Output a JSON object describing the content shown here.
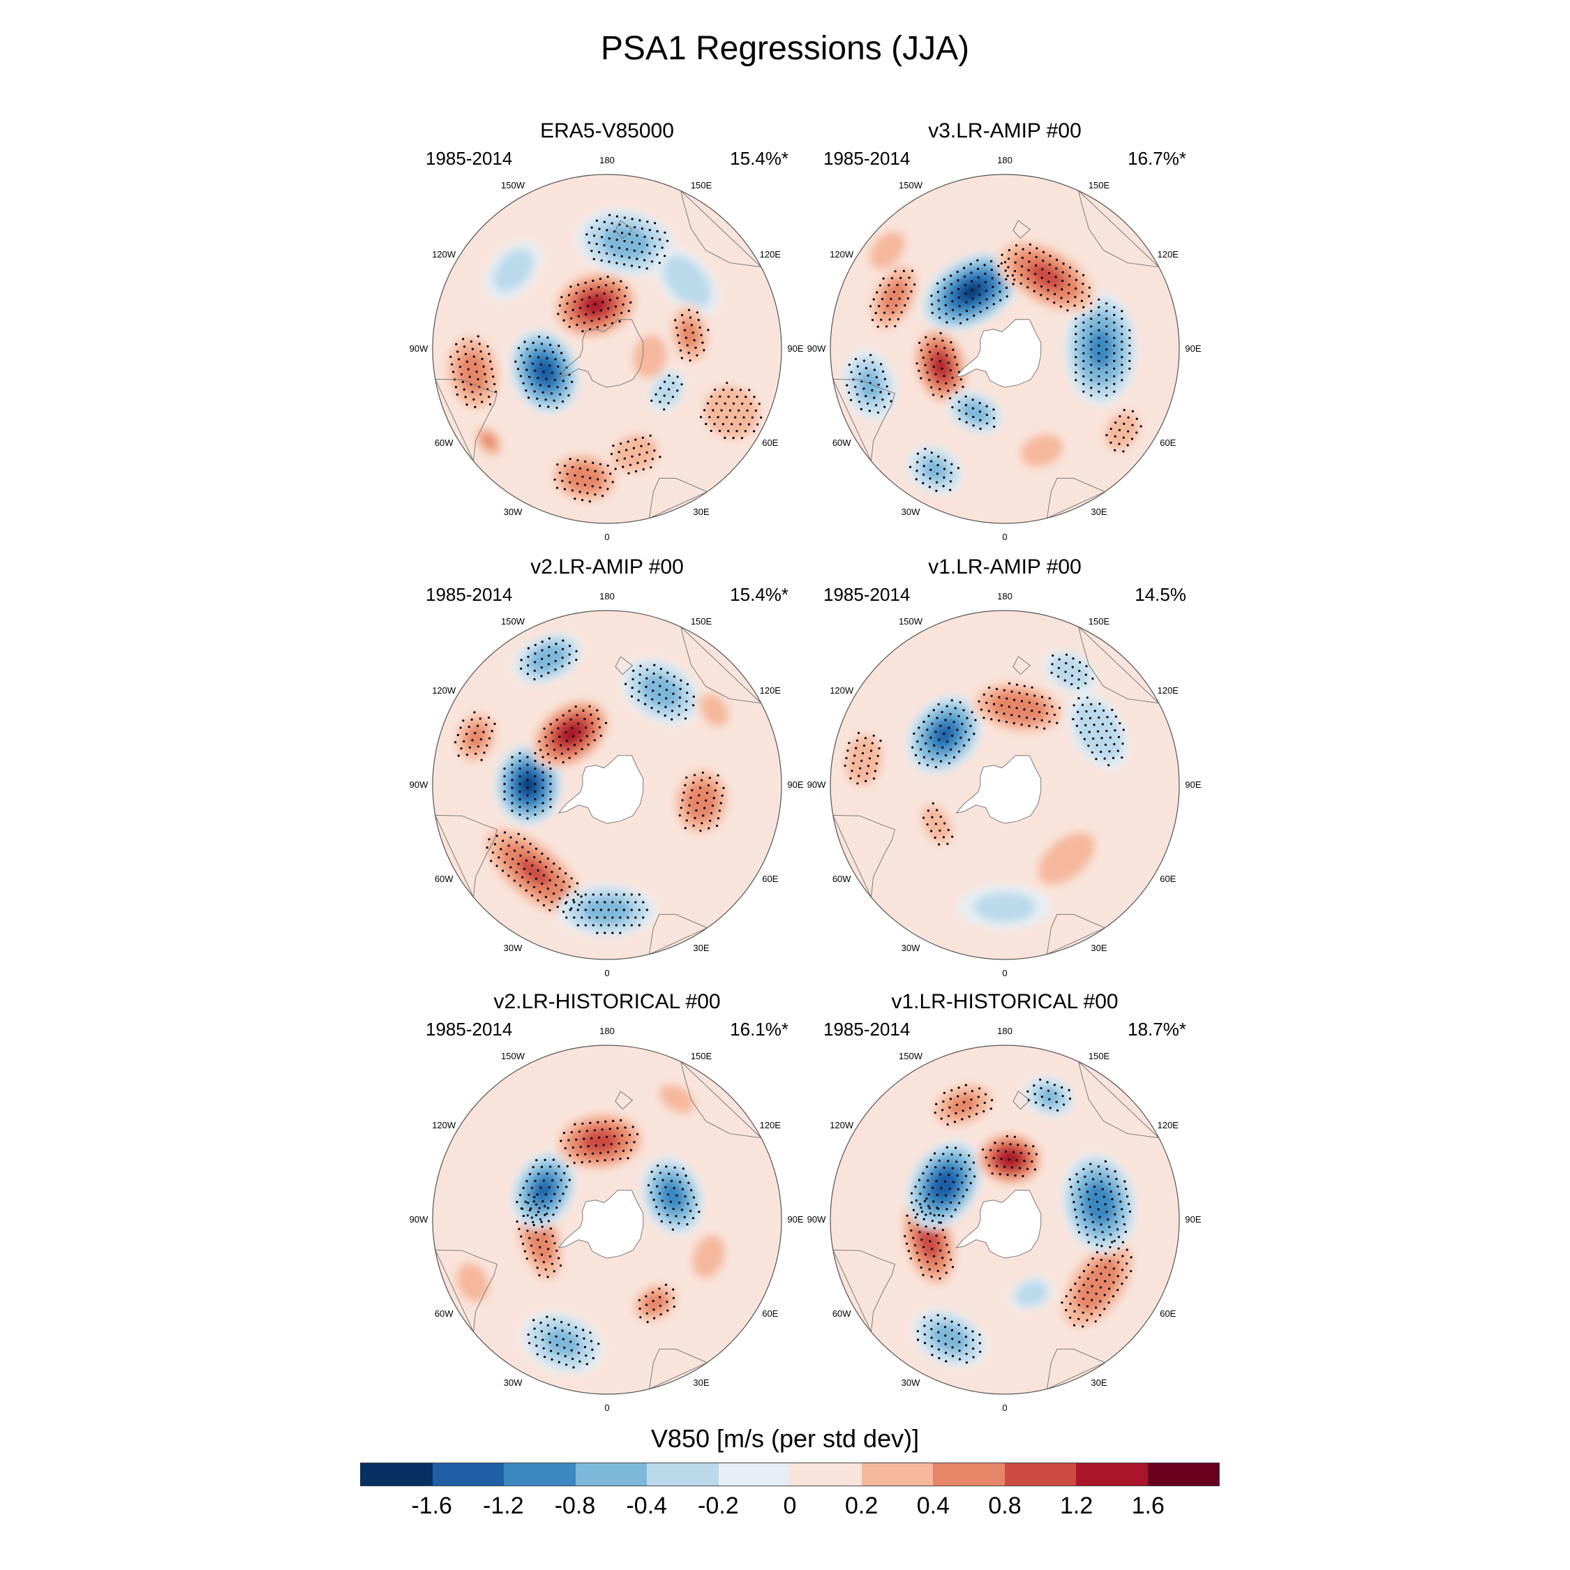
{
  "title": "PSA1 Regressions (JJA)",
  "colors": {
    "land_mask": "#ffffff",
    "coast": "#7a7a7a",
    "frame": "#555555",
    "stipple": "#000000"
  },
  "panels": [
    {
      "id": "era5",
      "title": "ERA5-V85000",
      "period": "1985-2014",
      "variance": "15.4%*",
      "antarctica_masked": false,
      "lobes": [
        {
          "lon": 63,
          "dist": 0.8,
          "rx": 0.2,
          "ry": 0.22,
          "val": 0.5,
          "stip": true
        },
        {
          "lon": 15,
          "dist": 0.62,
          "rx": 0.18,
          "ry": 0.14,
          "val": 0.5,
          "stip": true
        },
        {
          "lon": 80,
          "dist": 0.25,
          "rx": 0.18,
          "ry": 0.14,
          "val": 0.4,
          "stip": false
        },
        {
          "lon": -10,
          "dist": 0.75,
          "rx": 0.22,
          "ry": 0.16,
          "val": 0.8,
          "stip": true
        },
        {
          "lon": -80,
          "dist": 0.78,
          "rx": 0.26,
          "ry": 0.18,
          "val": 0.7,
          "stip": true
        },
        {
          "lon": -52,
          "dist": 0.86,
          "rx": 0.12,
          "ry": 0.08,
          "val": 0.6,
          "stip": false
        },
        {
          "lon": -70,
          "dist": 0.38,
          "rx": 0.26,
          "ry": 0.2,
          "val": -1.6,
          "stip": true
        },
        {
          "lon": -165,
          "dist": 0.26,
          "rx": 0.26,
          "ry": 0.2,
          "val": 1.5,
          "stip": true
        },
        {
          "lon": 170,
          "dist": 0.62,
          "rx": 0.3,
          "ry": 0.2,
          "val": -0.7,
          "stip": true
        },
        {
          "lon": 130,
          "dist": 0.6,
          "rx": 0.25,
          "ry": 0.15,
          "val": -0.4,
          "stip": false
        },
        {
          "lon": -130,
          "dist": 0.7,
          "rx": 0.22,
          "ry": 0.14,
          "val": -0.3,
          "stip": false
        },
        {
          "lon": 100,
          "dist": 0.48,
          "rx": 0.2,
          "ry": 0.13,
          "val": 0.6,
          "stip": true
        },
        {
          "lon": 55,
          "dist": 0.42,
          "rx": 0.14,
          "ry": 0.1,
          "val": -0.5,
          "stip": true
        }
      ]
    },
    {
      "id": "v3amip",
      "title": "v3.LR-AMIP  #00",
      "period": "1985-2014",
      "variance": "16.7%*",
      "antarctica_masked": true,
      "lobes": [
        {
          "lon": -30,
          "dist": 0.8,
          "rx": 0.18,
          "ry": 0.14,
          "val": -0.6,
          "stip": true
        },
        {
          "lon": -75,
          "dist": 0.8,
          "rx": 0.22,
          "ry": 0.16,
          "val": -0.6,
          "stip": true
        },
        {
          "lon": -75,
          "dist": 0.38,
          "rx": 0.24,
          "ry": 0.16,
          "val": 1.4,
          "stip": true
        },
        {
          "lon": -25,
          "dist": 0.4,
          "rx": 0.18,
          "ry": 0.12,
          "val": -0.7,
          "stip": true
        },
        {
          "lon": 90,
          "dist": 0.55,
          "rx": 0.34,
          "ry": 0.22,
          "val": -1.1,
          "stip": true
        },
        {
          "lon": 55,
          "dist": 0.82,
          "rx": 0.16,
          "ry": 0.12,
          "val": 0.5,
          "stip": true
        },
        {
          "lon": -150,
          "dist": 0.38,
          "rx": 0.32,
          "ry": 0.2,
          "val": -1.8,
          "stip": true
        },
        {
          "lon": 150,
          "dist": 0.48,
          "rx": 0.34,
          "ry": 0.18,
          "val": 1.1,
          "stip": true
        },
        {
          "lon": -115,
          "dist": 0.7,
          "rx": 0.24,
          "ry": 0.14,
          "val": 0.7,
          "stip": true
        },
        {
          "lon": 20,
          "dist": 0.62,
          "rx": 0.2,
          "ry": 0.14,
          "val": 0.3,
          "stip": false
        },
        {
          "lon": -130,
          "dist": 0.88,
          "rx": 0.18,
          "ry": 0.12,
          "val": 0.4,
          "stip": false
        }
      ]
    },
    {
      "id": "v2amip",
      "title": "v2.LR-AMIP  #00",
      "period": "1985-2014",
      "variance": "15.4%*",
      "antarctica_masked": true,
      "lobes": [
        {
          "lon": -40,
          "dist": 0.65,
          "rx": 0.4,
          "ry": 0.18,
          "val": 1.0,
          "stip": true
        },
        {
          "lon": 0,
          "dist": 0.72,
          "rx": 0.3,
          "ry": 0.16,
          "val": -0.7,
          "stip": true
        },
        {
          "lon": 80,
          "dist": 0.55,
          "rx": 0.22,
          "ry": 0.18,
          "val": 0.8,
          "stip": true
        },
        {
          "lon": -90,
          "dist": 0.45,
          "rx": 0.24,
          "ry": 0.2,
          "val": -1.8,
          "stip": true
        },
        {
          "lon": -145,
          "dist": 0.36,
          "rx": 0.26,
          "ry": 0.18,
          "val": 1.6,
          "stip": true
        },
        {
          "lon": -110,
          "dist": 0.8,
          "rx": 0.18,
          "ry": 0.14,
          "val": 0.6,
          "stip": true
        },
        {
          "lon": -155,
          "dist": 0.8,
          "rx": 0.22,
          "ry": 0.14,
          "val": -0.8,
          "stip": true
        },
        {
          "lon": 150,
          "dist": 0.62,
          "rx": 0.26,
          "ry": 0.18,
          "val": -0.7,
          "stip": true
        },
        {
          "lon": 125,
          "dist": 0.75,
          "rx": 0.14,
          "ry": 0.1,
          "val": 0.5,
          "stip": false
        }
      ]
    },
    {
      "id": "v1amip",
      "title": "v1.LR-AMIP  #00",
      "period": "1985-2014",
      "variance": "14.5%",
      "antarctica_masked": true,
      "lobes": [
        {
          "lon": -130,
          "dist": 0.45,
          "rx": 0.26,
          "ry": 0.2,
          "val": -1.4,
          "stip": true
        },
        {
          "lon": 170,
          "dist": 0.45,
          "rx": 0.3,
          "ry": 0.16,
          "val": 0.9,
          "stip": true
        },
        {
          "lon": -100,
          "dist": 0.82,
          "rx": 0.2,
          "ry": 0.14,
          "val": 0.5,
          "stip": true
        },
        {
          "lon": 120,
          "dist": 0.62,
          "rx": 0.26,
          "ry": 0.16,
          "val": -0.5,
          "stip": true
        },
        {
          "lon": 150,
          "dist": 0.75,
          "rx": 0.18,
          "ry": 0.12,
          "val": -0.4,
          "stip": true
        },
        {
          "lon": 40,
          "dist": 0.55,
          "rx": 0.28,
          "ry": 0.16,
          "val": 0.4,
          "stip": false
        },
        {
          "lon": -60,
          "dist": 0.45,
          "rx": 0.16,
          "ry": 0.1,
          "val": 0.5,
          "stip": true
        },
        {
          "lon": 0,
          "dist": 0.7,
          "rx": 0.3,
          "ry": 0.14,
          "val": -0.25,
          "stip": false
        }
      ]
    },
    {
      "id": "v2hist",
      "title": "v2.LR-HISTORICAL  #00",
      "period": "1985-2014",
      "variance": "16.1%*",
      "antarctica_masked": true,
      "lobes": [
        {
          "lon": -20,
          "dist": 0.75,
          "rx": 0.26,
          "ry": 0.18,
          "val": -0.6,
          "stip": true
        },
        {
          "lon": 30,
          "dist": 0.55,
          "rx": 0.16,
          "ry": 0.12,
          "val": 0.7,
          "stip": true
        },
        {
          "lon": -75,
          "dist": 0.4,
          "rx": 0.3,
          "ry": 0.14,
          "val": 0.8,
          "stip": true
        },
        {
          "lon": -115,
          "dist": 0.4,
          "rx": 0.24,
          "ry": 0.18,
          "val": -1.4,
          "stip": true
        },
        {
          "lon": -175,
          "dist": 0.45,
          "rx": 0.28,
          "ry": 0.18,
          "val": 1.2,
          "stip": true
        },
        {
          "lon": 110,
          "dist": 0.4,
          "rx": 0.24,
          "ry": 0.18,
          "val": -1.2,
          "stip": true
        },
        {
          "lon": 70,
          "dist": 0.62,
          "rx": 0.2,
          "ry": 0.14,
          "val": 0.3,
          "stip": false
        },
        {
          "lon": -65,
          "dist": 0.85,
          "rx": 0.16,
          "ry": 0.12,
          "val": 0.5,
          "stip": false
        },
        {
          "lon": 150,
          "dist": 0.8,
          "rx": 0.16,
          "ry": 0.1,
          "val": 0.4,
          "stip": false
        }
      ]
    },
    {
      "id": "v1hist",
      "title": "v1.LR-HISTORICAL  #00",
      "period": "1985-2014",
      "variance": "18.7%*",
      "antarctica_masked": true,
      "lobes": [
        {
          "lon": -25,
          "dist": 0.75,
          "rx": 0.24,
          "ry": 0.16,
          "val": -0.7,
          "stip": true
        },
        {
          "lon": 55,
          "dist": 0.65,
          "rx": 0.34,
          "ry": 0.18,
          "val": 0.8,
          "stip": true
        },
        {
          "lon": -75,
          "dist": 0.45,
          "rx": 0.3,
          "ry": 0.16,
          "val": 1.2,
          "stip": true
        },
        {
          "lon": -120,
          "dist": 0.4,
          "rx": 0.28,
          "ry": 0.2,
          "val": -1.7,
          "stip": true
        },
        {
          "lon": 175,
          "dist": 0.35,
          "rx": 0.2,
          "ry": 0.16,
          "val": 1.7,
          "stip": true
        },
        {
          "lon": 100,
          "dist": 0.55,
          "rx": 0.3,
          "ry": 0.22,
          "val": -1.3,
          "stip": true
        },
        {
          "lon": -160,
          "dist": 0.7,
          "rx": 0.22,
          "ry": 0.14,
          "val": 0.6,
          "stip": true
        },
        {
          "lon": 160,
          "dist": 0.75,
          "rx": 0.16,
          "ry": 0.12,
          "val": -0.6,
          "stip": true
        },
        {
          "lon": 20,
          "dist": 0.45,
          "rx": 0.14,
          "ry": 0.1,
          "val": -0.4,
          "stip": false
        }
      ]
    }
  ],
  "lon_labels": [
    {
      "lon": 0,
      "text": "0"
    },
    {
      "lon": 30,
      "text": "30E"
    },
    {
      "lon": 60,
      "text": "60E"
    },
    {
      "lon": 90,
      "text": "90E"
    },
    {
      "lon": 120,
      "text": "120E"
    },
    {
      "lon": 150,
      "text": "150E"
    },
    {
      "lon": 180,
      "text": "180"
    },
    {
      "lon": -150,
      "text": "150W"
    },
    {
      "lon": -120,
      "text": "120W"
    },
    {
      "lon": -90,
      "text": "90W"
    },
    {
      "lon": -60,
      "text": "60W"
    },
    {
      "lon": -30,
      "text": "30W"
    }
  ],
  "colorbar": {
    "title": "V850 [m/s (per std dev)]",
    "colors": [
      "#053061",
      "#1f5fa6",
      "#3a89c2",
      "#7db8da",
      "#bad9eb",
      "#e6eef4",
      "#f9e4db",
      "#f5b89c",
      "#e68668",
      "#cc4c44",
      "#ab1529",
      "#67001f"
    ],
    "levels": [
      -1.6,
      -1.2,
      -0.8,
      -0.4,
      -0.2,
      0,
      0.2,
      0.4,
      0.8,
      1.2,
      1.6
    ],
    "tick_labels": [
      "-1.6",
      "-1.2",
      "-0.8",
      "-0.4",
      "-0.2",
      "0",
      "0.2",
      "0.4",
      "0.8",
      "1.2",
      "1.6"
    ]
  }
}
